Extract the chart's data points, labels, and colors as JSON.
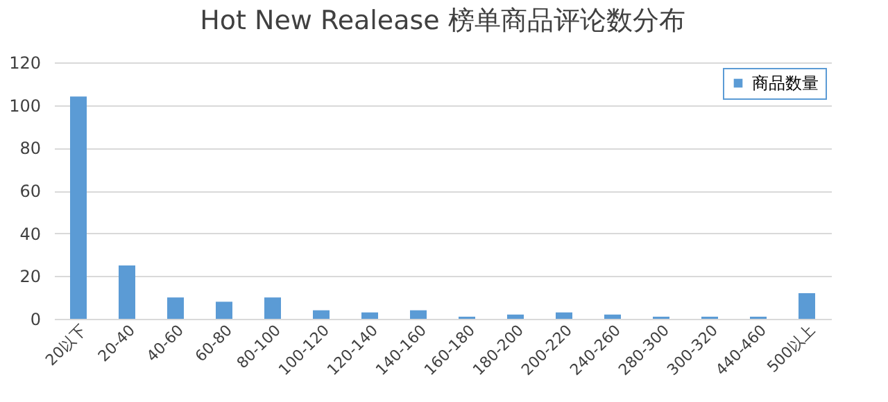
{
  "chart_data": {
    "type": "bar",
    "title": "Hot New Realease 榜单商品评论数分布",
    "categories": [
      "20以下",
      "20-40",
      "40-60",
      "60-80",
      "80-100",
      "100-120",
      "120-140",
      "140-160",
      "160-180",
      "180-200",
      "200-220",
      "240-260",
      "280-300",
      "300-320",
      "440-460",
      "500以上"
    ],
    "series": [
      {
        "name": "商品数量",
        "color": "#5b9bd5",
        "values": [
          104,
          25,
          10,
          8,
          10,
          4,
          3,
          4,
          1,
          2,
          3,
          2,
          1,
          1,
          1,
          12
        ]
      }
    ],
    "ylim": [
      0,
      120
    ],
    "yticks": [
      0,
      20,
      40,
      60,
      80,
      100,
      120
    ],
    "grid": "y",
    "legend": "top right"
  }
}
